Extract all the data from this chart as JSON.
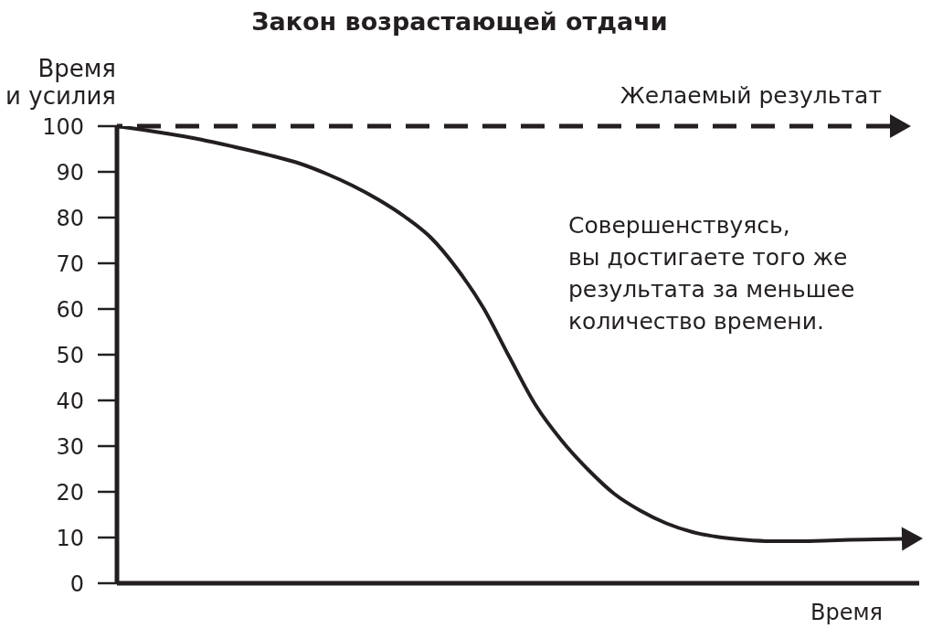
{
  "chart_data": {
    "type": "line",
    "title": "Закон возрастающей отдачи",
    "xlabel": "Время",
    "ylabel": "Время\nи усилия",
    "categories": [
      null,
      null,
      null,
      null,
      null,
      null,
      null,
      null,
      null,
      null,
      null,
      null,
      null,
      null,
      null,
      null,
      null,
      null,
      null,
      null,
      null,
      null,
      null,
      null,
      null,
      null,
      null,
      null,
      null,
      null,
      null
    ],
    "series": [
      {
        "color": "#231f20",
        "line_style": "solid",
        "values": [
          100,
          99.2,
          98.3,
          97.3,
          96.1,
          94.8,
          93.4,
          91.8,
          89.6,
          87.0,
          83.9,
          80.2,
          75.6,
          68.8,
          60.3,
          49.5,
          39.0,
          31.2,
          24.9,
          19.6,
          15.9,
          13.1,
          11.2,
          10.1,
          9.5,
          9.2,
          9.2,
          9.3,
          9.5,
          9.6,
          9.7
        ]
      }
    ],
    "ylim": [
      0,
      100
    ],
    "yticks": [
      0,
      10,
      20,
      30,
      40,
      50,
      60,
      70,
      80,
      90,
      100
    ],
    "ref_lines": [
      {
        "axis": "y",
        "value": 100,
        "label": "Желаемый результат",
        "line_style": "dashed",
        "color": "#231f20"
      }
    ],
    "annotations": [
      "Совершенствуясь,\nвы достигаете того же\nрезультата за меньшее\nколичество времени."
    ],
    "marker": "none"
  }
}
